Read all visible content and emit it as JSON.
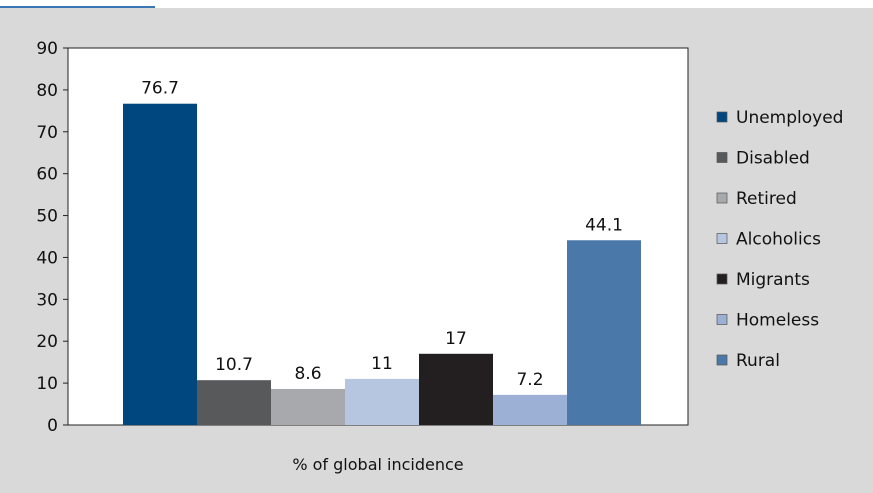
{
  "chart_data": {
    "type": "bar",
    "xlabel": "% of global incidence",
    "ylabel": "",
    "ylim": [
      0,
      90
    ],
    "yticks": [
      0,
      10,
      20,
      30,
      40,
      50,
      60,
      70,
      80,
      90
    ],
    "grid": false,
    "legend_position": "right",
    "series": [
      {
        "name": "Unemployed",
        "value": 76.7,
        "label": "76.7",
        "color": "#00467f"
      },
      {
        "name": "Disabled",
        "value": 10.7,
        "label": "10.7",
        "color": "#58595b"
      },
      {
        "name": "Retired",
        "value": 8.6,
        "label": "8.6",
        "color": "#a7a9ac"
      },
      {
        "name": "Alcoholics",
        "value": 11,
        "label": "11",
        "color": "#b6c6e0"
      },
      {
        "name": "Migrants",
        "value": 17,
        "label": "17",
        "color": "#231f20"
      },
      {
        "name": "Homeless",
        "value": 7.2,
        "label": "7.2",
        "color": "#9bb0d4"
      },
      {
        "name": "Rural",
        "value": 44.1,
        "label": "44.1",
        "color": "#4a78a8"
      }
    ]
  }
}
